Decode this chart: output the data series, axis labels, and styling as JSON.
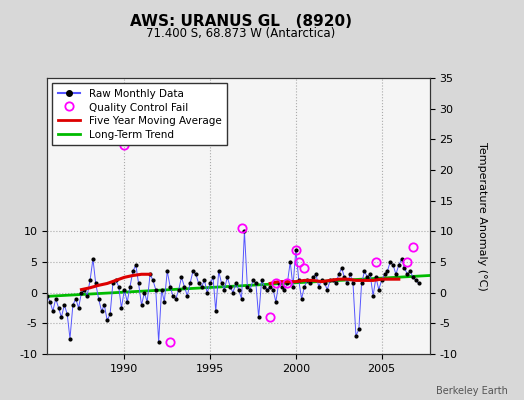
{
  "title": "AWS: URANUS GL   (8920)",
  "subtitle": "71.400 S, 68.873 W (Antarctica)",
  "ylabel_right": "Temperature Anomaly (°C)",
  "watermark": "Berkeley Earth",
  "xlim": [
    1985.5,
    2007.8
  ],
  "ylim": [
    -10,
    35
  ],
  "yticks_left": [
    -10,
    -5,
    0,
    5,
    10
  ],
  "yticks_right": [
    -10,
    -5,
    0,
    5,
    10,
    15,
    20,
    25,
    30,
    35
  ],
  "xticks": [
    1990,
    1995,
    2000,
    2005
  ],
  "bg_color": "#d8d8d8",
  "plot_bg_color": "#f5f5f5",
  "raw_line_color": "#5555ff",
  "raw_marker_color": "#000000",
  "qc_color": "#ff00ff",
  "moving_avg_color": "#dd0000",
  "trend_color": "#00bb00",
  "raw_monthly_x": [
    1985.5,
    1985.67,
    1985.83,
    1986.0,
    1986.17,
    1986.33,
    1986.5,
    1986.67,
    1986.83,
    1987.0,
    1987.17,
    1987.33,
    1987.5,
    1987.67,
    1987.83,
    1988.0,
    1988.17,
    1988.33,
    1988.5,
    1988.67,
    1988.83,
    1989.0,
    1989.17,
    1989.33,
    1989.5,
    1989.67,
    1989.83,
    1990.0,
    1990.17,
    1990.33,
    1990.5,
    1990.67,
    1990.83,
    1991.0,
    1991.17,
    1991.33,
    1991.5,
    1991.67,
    1991.83,
    1992.0,
    1992.17,
    1992.33,
    1992.5,
    1992.67,
    1992.83,
    1993.0,
    1993.17,
    1993.33,
    1993.5,
    1993.67,
    1993.83,
    1994.0,
    1994.17,
    1994.33,
    1994.5,
    1994.67,
    1994.83,
    1995.0,
    1995.17,
    1995.33,
    1995.5,
    1995.67,
    1995.83,
    1996.0,
    1996.17,
    1996.33,
    1996.5,
    1996.67,
    1996.83,
    1997.0,
    1997.17,
    1997.33,
    1997.5,
    1997.67,
    1997.83,
    1998.0,
    1998.17,
    1998.33,
    1998.5,
    1998.67,
    1998.83,
    1999.0,
    1999.17,
    1999.33,
    1999.5,
    1999.67,
    1999.83,
    2000.0,
    2000.17,
    2000.33,
    2000.5,
    2000.67,
    2000.83,
    2001.0,
    2001.17,
    2001.33,
    2001.5,
    2001.67,
    2001.83,
    2002.0,
    2002.17,
    2002.33,
    2002.5,
    2002.67,
    2002.83,
    2003.0,
    2003.17,
    2003.33,
    2003.5,
    2003.67,
    2003.83,
    2004.0,
    2004.17,
    2004.33,
    2004.5,
    2004.67,
    2004.83,
    2005.0,
    2005.17,
    2005.33,
    2005.5,
    2005.67,
    2005.83,
    2006.0,
    2006.17,
    2006.33,
    2006.5,
    2006.67,
    2006.83,
    2007.0,
    2007.17
  ],
  "raw_monthly_y": [
    -0.5,
    -1.5,
    -3.0,
    -1.0,
    -2.5,
    -4.0,
    -2.0,
    -3.5,
    -7.5,
    -2.0,
    -1.0,
    -2.5,
    0.0,
    0.5,
    -0.5,
    2.0,
    5.5,
    1.5,
    -1.0,
    -3.0,
    -2.0,
    -4.5,
    -3.5,
    1.5,
    2.0,
    1.0,
    -2.5,
    0.5,
    -1.5,
    1.0,
    3.5,
    4.5,
    1.5,
    -2.0,
    0.0,
    -1.5,
    3.0,
    2.0,
    0.5,
    -8.0,
    0.5,
    -1.5,
    3.5,
    1.0,
    -0.5,
    -1.0,
    0.5,
    2.5,
    1.0,
    -0.5,
    1.5,
    3.5,
    3.0,
    1.5,
    1.0,
    2.0,
    0.0,
    1.5,
    2.5,
    -3.0,
    3.5,
    1.5,
    0.5,
    2.5,
    1.0,
    0.0,
    1.5,
    0.5,
    -1.0,
    10.0,
    1.0,
    0.5,
    2.0,
    1.5,
    -4.0,
    2.0,
    1.0,
    0.5,
    1.0,
    0.5,
    -1.5,
    1.5,
    1.0,
    0.5,
    1.5,
    5.0,
    1.0,
    7.0,
    2.0,
    -1.0,
    1.0,
    2.0,
    1.5,
    2.5,
    3.0,
    1.0,
    2.0,
    1.5,
    0.5,
    2.0,
    2.0,
    1.5,
    3.0,
    4.0,
    2.5,
    1.5,
    3.0,
    1.5,
    -7.0,
    -6.0,
    1.5,
    3.5,
    2.5,
    3.0,
    -0.5,
    2.5,
    0.5,
    2.0,
    3.0,
    3.5,
    5.0,
    4.5,
    3.0,
    4.5,
    5.5,
    4.0,
    3.0,
    3.5,
    2.5,
    2.0,
    1.5
  ],
  "qc_fail_x": [
    1990.0,
    1992.67,
    1996.83,
    1998.5,
    1998.83,
    1999.5,
    2000.0,
    2000.17,
    2000.5,
    2004.67,
    2006.5,
    2006.83
  ],
  "qc_fail_y": [
    24.0,
    -8.0,
    10.5,
    -4.0,
    1.5,
    1.5,
    7.0,
    5.0,
    4.0,
    5.0,
    5.0,
    7.5
  ],
  "moving_avg_seg1_x": [
    1987.5,
    1988.0,
    1988.5,
    1989.0,
    1989.5,
    1990.0,
    1990.5,
    1991.0,
    1991.5
  ],
  "moving_avg_seg1_y": [
    0.5,
    0.8,
    1.2,
    1.5,
    2.0,
    2.5,
    2.8,
    3.0,
    3.0
  ],
  "moving_avg_seg2_x": [
    1998.5,
    1999.0,
    1999.5,
    2000.0,
    2000.5,
    2001.0,
    2001.5,
    2002.0,
    2002.5,
    2003.0,
    2003.5,
    2004.0,
    2004.5,
    2005.0,
    2005.5,
    2006.0
  ],
  "moving_avg_seg2_y": [
    1.5,
    1.8,
    1.8,
    1.8,
    2.0,
    2.0,
    1.8,
    2.0,
    2.2,
    2.2,
    2.0,
    2.0,
    2.0,
    2.2,
    2.2,
    2.2
  ],
  "trend_x": [
    1985.5,
    2007.8
  ],
  "trend_y": [
    -0.6,
    2.8
  ]
}
